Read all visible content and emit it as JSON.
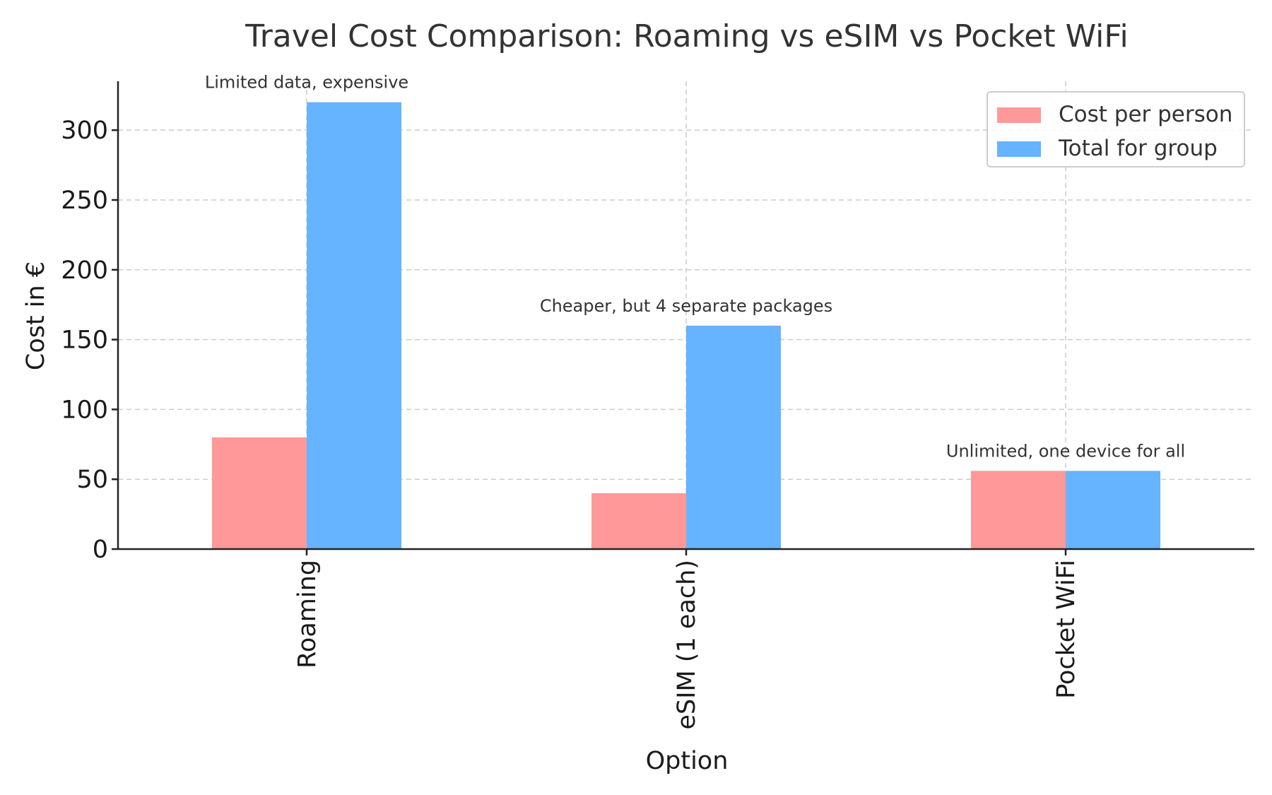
{
  "chart_data": {
    "type": "bar",
    "title": "Travel Cost Comparison: Roaming vs eSIM vs Pocket WiFi",
    "xlabel": "Option",
    "ylabel": "Cost in €",
    "categories": [
      "Roaming",
      "eSIM (1 each)",
      "Pocket WiFi"
    ],
    "series": [
      {
        "name": "Cost per person",
        "color": "#ff9999",
        "values": [
          80,
          40,
          56
        ]
      },
      {
        "name": "Total for group",
        "color": "#66b3ff",
        "values": [
          320,
          160,
          56
        ]
      }
    ],
    "ylim": [
      0,
      335
    ],
    "yticks": [
      0,
      50,
      100,
      150,
      200,
      250,
      300
    ],
    "annotations": [
      {
        "category": "Roaming",
        "text": "Limited data, expensive"
      },
      {
        "category": "eSIM (1 each)",
        "text": "Cheaper, but 4 separate packages"
      },
      {
        "category": "Pocket WiFi",
        "text": "Unlimited, one device for all"
      }
    ],
    "grid": true,
    "legend_position": "top-right"
  }
}
